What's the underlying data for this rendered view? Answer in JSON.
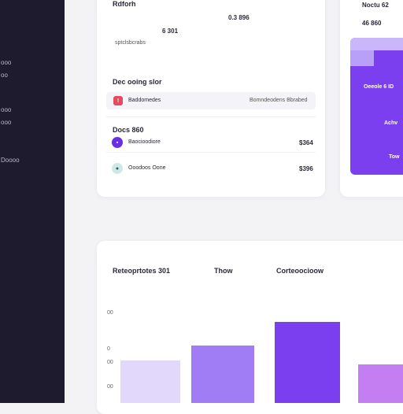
{
  "sidebar": {
    "items": [
      {
        "label": "ooo"
      },
      {
        "label": "oo"
      },
      {
        "label": "ooo"
      },
      {
        "label": "ooo"
      },
      {
        "label": "Doooo"
      }
    ]
  },
  "summary_card": {
    "title": "Rdforh",
    "top_value": "0.3 896",
    "sub_value": "6 301",
    "caption": "sptclsbcrabs",
    "section_title": "Dec ooing slor",
    "row1": {
      "name": "Baddomedes",
      "detail": "Bomndeodens Bbrabed"
    },
    "section2_title": "Docs 860",
    "row2": {
      "name": "Baocioodiore",
      "amount": "$364"
    },
    "row3": {
      "name": "Ooodoos Oone",
      "amount": "$396"
    }
  },
  "right_card": {
    "title": "Noctu 62",
    "value": "46 860",
    "label1": "Oeeole 6 ID",
    "label2": "Achv",
    "label3": "Tow"
  },
  "chart_card": {
    "title": "Reteoprtotes 301",
    "col2_header": "Thow",
    "col3_header": "Corteoocioow"
  },
  "chart_data": {
    "type": "bar",
    "title": "Reteoprtotes 301",
    "xlabel": "",
    "ylabel": "",
    "ytick_labels": [
      "00",
      "0",
      "00",
      "00"
    ],
    "categories": [
      "",
      "",
      "",
      ""
    ],
    "values": [
      29,
      39,
      55,
      26
    ],
    "ylim": [
      0,
      64
    ],
    "grid": false,
    "colors": [
      "#e1d8fb",
      "#a07cf5",
      "#7b3ff0",
      "#c57ef2"
    ]
  },
  "colors": {
    "sidebar": "#1f1b2e",
    "accent": "#7b3ff0",
    "background": "#f3f3f6"
  }
}
